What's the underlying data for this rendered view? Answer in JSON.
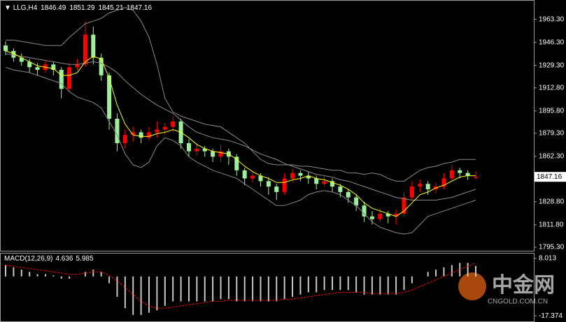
{
  "watermark": {
    "title": "中金网",
    "url": "CNGOLD.COM.CN"
  },
  "chart_data": [
    {
      "type": "candlestick",
      "symbol": "LLG,H4",
      "up_color": "#ff0000",
      "down_color": "#9cf09c",
      "ylim": [
        1793.2,
        1976.5
      ],
      "yticks": [
        {
          "value": 1963.3,
          "label": "1963.30"
        },
        {
          "value": 1946.3,
          "label": "1946.30"
        },
        {
          "value": 1929.3,
          "label": "1929.30"
        },
        {
          "value": 1912.8,
          "label": "1912.80"
        },
        {
          "value": 1895.8,
          "label": "1895.80"
        },
        {
          "value": 1879.3,
          "label": "1879.30"
        },
        {
          "value": 1862.3,
          "label": "1862.30"
        },
        {
          "value": 1828.8,
          "label": "1828.80"
        },
        {
          "value": 1811.8,
          "label": "1811.80"
        },
        {
          "value": 1795.3,
          "label": "1795.30"
        }
      ],
      "candles": [
        [
          1944,
          1947,
          1937,
          1940
        ],
        [
          1940,
          1942,
          1932,
          1935
        ],
        [
          1935,
          1938,
          1929,
          1932
        ],
        [
          1932,
          1934,
          1924,
          1928
        ],
        [
          1928,
          1931,
          1922,
          1926
        ],
        [
          1926,
          1933,
          1924,
          1930
        ],
        [
          1930,
          1932,
          1922,
          1926
        ],
        [
          1926,
          1928,
          1905,
          1912
        ],
        [
          1912,
          1931,
          1910,
          1928
        ],
        [
          1928,
          1934,
          1926,
          1930
        ],
        [
          1930,
          1962,
          1928,
          1952
        ],
        [
          1952,
          1958,
          1930,
          1935
        ],
        [
          1935,
          1938,
          1918,
          1922
        ],
        [
          1922,
          1924,
          1882,
          1890
        ],
        [
          1890,
          1894,
          1866,
          1872
        ],
        [
          1872,
          1882,
          1868,
          1878
        ],
        [
          1878,
          1884,
          1873,
          1880
        ],
        [
          1880,
          1882,
          1872,
          1876
        ],
        [
          1876,
          1884,
          1874,
          1880
        ],
        [
          1880,
          1888,
          1876,
          1882
        ],
        [
          1882,
          1887,
          1878,
          1884
        ],
        [
          1884,
          1892,
          1880,
          1888
        ],
        [
          1888,
          1890,
          1868,
          1872
        ],
        [
          1872,
          1875,
          1862,
          1866
        ],
        [
          1866,
          1872,
          1863,
          1868
        ],
        [
          1868,
          1870,
          1862,
          1866
        ],
        [
          1866,
          1868,
          1858,
          1862
        ],
        [
          1862,
          1871,
          1858,
          1866
        ],
        [
          1866,
          1868,
          1856,
          1862
        ],
        [
          1862,
          1864,
          1848,
          1852
        ],
        [
          1852,
          1854,
          1841,
          1846
        ],
        [
          1846,
          1852,
          1843,
          1848
        ],
        [
          1848,
          1850,
          1840,
          1844
        ],
        [
          1844,
          1847,
          1834,
          1840
        ],
        [
          1840,
          1842,
          1830,
          1836
        ],
        [
          1836,
          1850,
          1834,
          1846
        ],
        [
          1846,
          1853,
          1843,
          1850
        ],
        [
          1850,
          1852,
          1844,
          1848
        ],
        [
          1848,
          1851,
          1842,
          1846
        ],
        [
          1846,
          1848,
          1838,
          1842
        ],
        [
          1842,
          1848,
          1840,
          1844
        ],
        [
          1844,
          1846,
          1836,
          1840
        ],
        [
          1840,
          1842,
          1832,
          1836
        ],
        [
          1836,
          1838,
          1828,
          1832
        ],
        [
          1832,
          1834,
          1822,
          1826
        ],
        [
          1826,
          1829,
          1814,
          1818
        ],
        [
          1818,
          1822,
          1812,
          1816
        ],
        [
          1816,
          1824,
          1814,
          1820
        ],
        [
          1820,
          1822,
          1813,
          1818
        ],
        [
          1818,
          1823,
          1812,
          1820
        ],
        [
          1820,
          1836,
          1818,
          1832
        ],
        [
          1832,
          1844,
          1830,
          1840
        ],
        [
          1840,
          1845,
          1836,
          1842
        ],
        [
          1842,
          1844,
          1834,
          1838
        ],
        [
          1838,
          1843,
          1835,
          1840
        ],
        [
          1840,
          1850,
          1838,
          1846
        ],
        [
          1846,
          1856,
          1844,
          1852
        ],
        [
          1852,
          1854,
          1846,
          1850
        ],
        [
          1850,
          1852,
          1845,
          1848
        ],
        [
          1846.49,
          1851.29,
          1845.21,
          1847.16
        ]
      ],
      "lines": [
        {
          "color": "#8a8a8a",
          "values": [
            1948,
            1948,
            1947,
            1946,
            1945,
            1944,
            1944,
            1944,
            1950,
            1955,
            1960,
            1962,
            1964,
            1968,
            1970,
            1972,
            1970,
            1962,
            1950,
            1930,
            1905,
            1895,
            1892,
            1890,
            1888,
            1886,
            1885,
            1884,
            1880,
            1876,
            1872,
            1866,
            1860,
            1857,
            1856,
            1856,
            1856,
            1855,
            1855,
            1854,
            1853,
            1852,
            1852,
            1850,
            1850,
            1849,
            1850,
            1849,
            1846,
            1844,
            1844,
            1848,
            1852,
            1854,
            1855,
            1857,
            1858,
            1860,
            1860,
            1860
          ]
        },
        {
          "color": "#8a8a8a",
          "values": [
            1938,
            1937,
            1936,
            1935,
            1934,
            1933,
            1932,
            1931,
            1930,
            1930,
            1931,
            1932,
            1931,
            1928,
            1924,
            1918,
            1913,
            1908,
            1904,
            1900,
            1897,
            1894,
            1889,
            1884,
            1880,
            1878,
            1876,
            1875,
            1874,
            1872,
            1870,
            1867,
            1864,
            1862,
            1860,
            1857,
            1855,
            1853,
            1851,
            1849,
            1848,
            1847,
            1845,
            1844,
            1842,
            1840,
            1838,
            1836,
            1834,
            1832,
            1831,
            1830,
            1830,
            1830,
            1830,
            1831,
            1832,
            1834,
            1836,
            1838
          ]
        },
        {
          "color": "#8a8a8a",
          "values": [
            1928,
            1926,
            1925,
            1924,
            1922,
            1920,
            1918,
            1916,
            1910,
            1906,
            1904,
            1902,
            1898,
            1888,
            1878,
            1864,
            1856,
            1854,
            1858,
            1870,
            1876,
            1874,
            1870,
            1862,
            1858,
            1855,
            1852,
            1850,
            1848,
            1846,
            1842,
            1838,
            1834,
            1830,
            1826,
            1826,
            1828,
            1830,
            1834,
            1836,
            1837,
            1836,
            1834,
            1830,
            1826,
            1820,
            1814,
            1810,
            1808,
            1806,
            1805,
            1806,
            1812,
            1818,
            1820,
            1822,
            1824,
            1826,
            1828,
            1830
          ]
        },
        {
          "color": "#ffff00",
          "values": [
            1940,
            1938,
            1935,
            1932,
            1929,
            1928,
            1927,
            1922,
            1922,
            1924,
            1932,
            1936,
            1934,
            1920,
            1900,
            1886,
            1878,
            1877,
            1877,
            1879,
            1880,
            1882,
            1880,
            1876,
            1871,
            1868,
            1866,
            1865,
            1864,
            1860,
            1855,
            1851,
            1848,
            1846,
            1843,
            1843,
            1845,
            1846,
            1848,
            1846,
            1845,
            1843,
            1841,
            1838,
            1834,
            1828,
            1824,
            1822,
            1820,
            1818,
            1822,
            1828,
            1834,
            1836,
            1839,
            1841,
            1844,
            1847,
            1848,
            1848
          ]
        }
      ]
    },
    {
      "type": "macd",
      "label": "MACD(12,26,9)",
      "label_values": [
        4.636,
        5.985
      ],
      "ylim": [
        -19.8,
        10.1
      ],
      "yticks": [
        8.013,
        -17.374
      ],
      "histogram_color": "#c8c8c8",
      "signal_color": "#ff0000",
      "histogram": [
        5,
        4,
        3,
        2,
        1,
        1,
        0.5,
        -1,
        -1,
        0,
        2,
        3,
        2,
        -3,
        -9,
        -14,
        -17,
        -17,
        -16,
        -15,
        -13,
        -11,
        -11,
        -11,
        -11,
        -11,
        -11,
        -10,
        -10,
        -11,
        -11,
        -11,
        -11,
        -11,
        -11,
        -10,
        -9,
        -8,
        -7,
        -7,
        -6,
        -6,
        -6,
        -6,
        -7,
        -8,
        -8,
        -8,
        -8,
        -8,
        -6,
        -3,
        0,
        2,
        3,
        4,
        5,
        6,
        6,
        4.636
      ],
      "signal": [
        5,
        4.5,
        4,
        3.5,
        3,
        2.5,
        2,
        1.5,
        1,
        1,
        1.5,
        2,
        2,
        0.5,
        -2,
        -5,
        -8,
        -11,
        -13,
        -14,
        -14,
        -13.5,
        -13,
        -12.5,
        -12,
        -11.5,
        -11,
        -11,
        -10.5,
        -10.5,
        -10.5,
        -10.5,
        -10.5,
        -10.5,
        -10.5,
        -10,
        -10,
        -9.5,
        -9,
        -8.5,
        -8,
        -7.5,
        -7,
        -7,
        -7,
        -7,
        -7.5,
        -7.5,
        -7.5,
        -7.5,
        -7,
        -6,
        -4.5,
        -3,
        -1.5,
        0,
        1.5,
        3,
        4.5,
        5.985
      ]
    }
  ]
}
